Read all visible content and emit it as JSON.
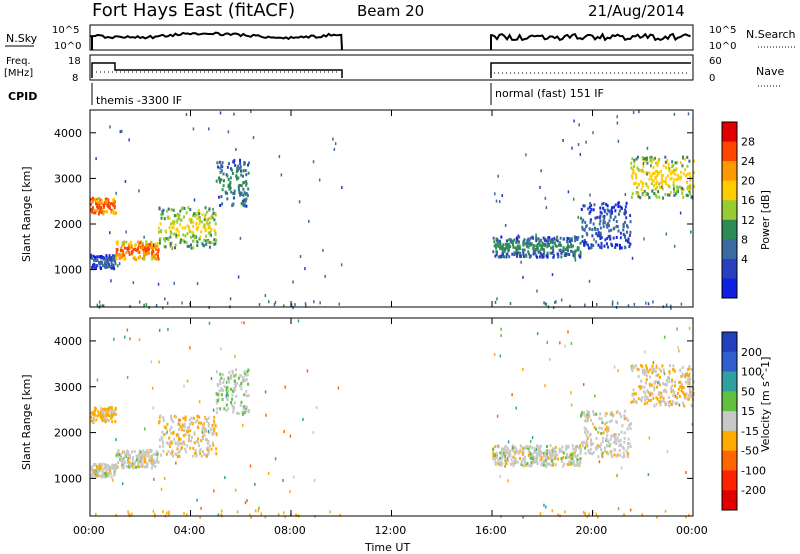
{
  "header": {
    "title": "Fort Hays East (fitACF)",
    "beam": "Beam 20",
    "date": "21/Aug/2014"
  },
  "panels": {
    "nsky_label": "N.Sky",
    "nsky_ticks": [
      "10^5",
      "10^0"
    ],
    "nsearch_label": "N.Search",
    "nsearch_ticks": [
      "10^5",
      "10^0"
    ],
    "freq_label_1": "Freq.",
    "freq_label_2": "[MHz]",
    "freq_ticks": [
      "18",
      "8"
    ],
    "nave_label": "Nave",
    "nave_ticks": [
      "60",
      "0"
    ],
    "cpid_label": "CPID",
    "cpid_1": "themis -3300 IF",
    "cpid_2": "normal (fast) 151 IF"
  },
  "axes": {
    "ylabel": "Slant Range [km]",
    "yticks": [
      "4000",
      "3000",
      "2000",
      "1000"
    ],
    "xlabel": "Time UT",
    "xticks": [
      "00:00",
      "04:00",
      "08:00",
      "12:00",
      "16:00",
      "20:00",
      "00:00"
    ]
  },
  "colorbars": {
    "power_label": "Power [dB]",
    "power_ticks": [
      "28",
      "24",
      "20",
      "16",
      "12",
      "8",
      "4"
    ],
    "power_colors": [
      "#e00000",
      "#ff4400",
      "#ff9900",
      "#ffcc00",
      "#99cc33",
      "#2e8b57",
      "#3a6aa0",
      "#2a3fbf",
      "#1020e0"
    ],
    "velocity_label": "Velocity [m s^-1]",
    "velocity_ticks": [
      "200",
      "100",
      "50",
      "15",
      "-15",
      "-50",
      "-100",
      "-200"
    ],
    "velocity_colors": [
      "#2040c0",
      "#3060d0",
      "#30a0a0",
      "#60c040",
      "#c8c8c8",
      "#ffaa00",
      "#ff6600",
      "#ff2200",
      "#e00000"
    ]
  },
  "chart_data": {
    "type": "heatmap",
    "xlim_hours": [
      0,
      24
    ],
    "ylim_km": [
      180,
      4500
    ],
    "data_gaps_hours": [
      [
        10,
        16
      ]
    ],
    "scatter_bands": [
      {
        "t0": 0.0,
        "t1": 1.0,
        "r0": 2250,
        "r1": 2600,
        "power_db": 28,
        "velocity": -20
      },
      {
        "t0": 0.0,
        "t1": 1.0,
        "r0": 1050,
        "r1": 1350,
        "power_db": 8,
        "velocity": 0
      },
      {
        "t0": 1.0,
        "t1": 2.7,
        "r0": 1250,
        "r1": 1650,
        "power_db": 26,
        "velocity": 0
      },
      {
        "t0": 2.7,
        "t1": 5.0,
        "r0": 1500,
        "r1": 2400,
        "power_db": 18,
        "velocity": -10
      },
      {
        "t0": 5.0,
        "t1": 6.3,
        "r0": 2400,
        "r1": 3450,
        "power_db": 12,
        "velocity": 10
      },
      {
        "t0": 16.0,
        "t1": 19.5,
        "r0": 1300,
        "r1": 1750,
        "power_db": 12,
        "velocity": 0
      },
      {
        "t0": 19.5,
        "t1": 21.5,
        "r0": 1500,
        "r1": 2500,
        "power_db": 8,
        "velocity": 0
      },
      {
        "t0": 21.5,
        "t1": 24.0,
        "r0": 2600,
        "r1": 3500,
        "power_db": 20,
        "velocity": -10
      }
    ]
  }
}
